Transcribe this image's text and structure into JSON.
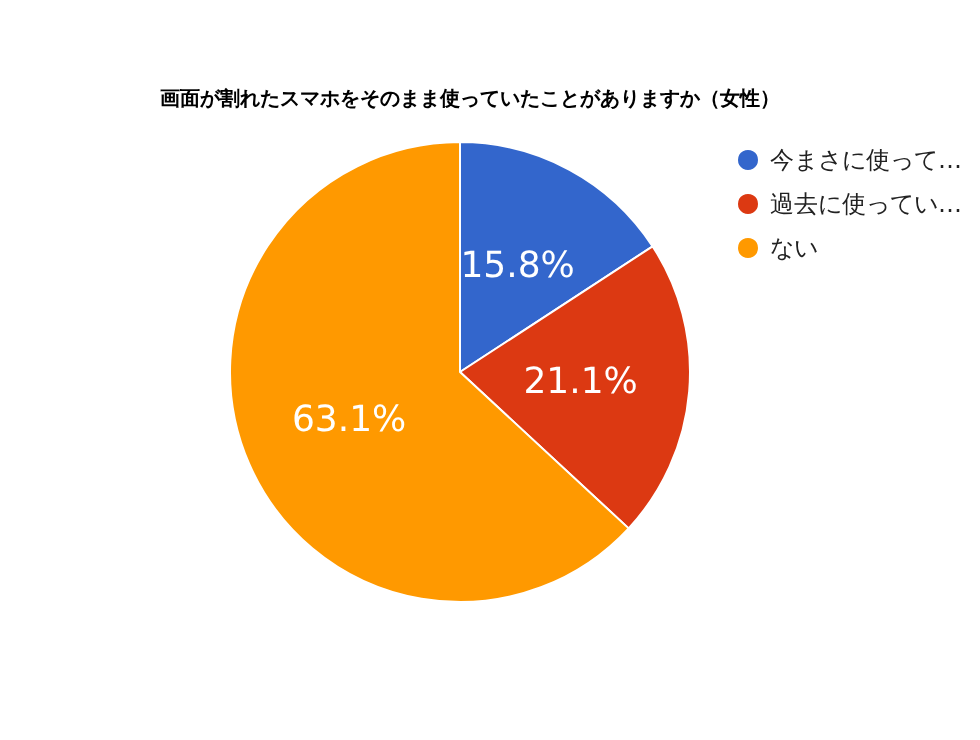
{
  "chart_data": {
    "type": "pie",
    "title": "画面が割れたスマホをそのまま使っていたことがありますか（女性）",
    "categories": [
      "今まさに使って…",
      "過去に使ってい…",
      "ない"
    ],
    "values": [
      15.8,
      21.1,
      63.1
    ],
    "value_labels": [
      "15.8%",
      "21.1%",
      "63.1%"
    ],
    "colors": [
      "#3366cc",
      "#dc3912",
      "#ff9900"
    ],
    "legend": "top right"
  }
}
